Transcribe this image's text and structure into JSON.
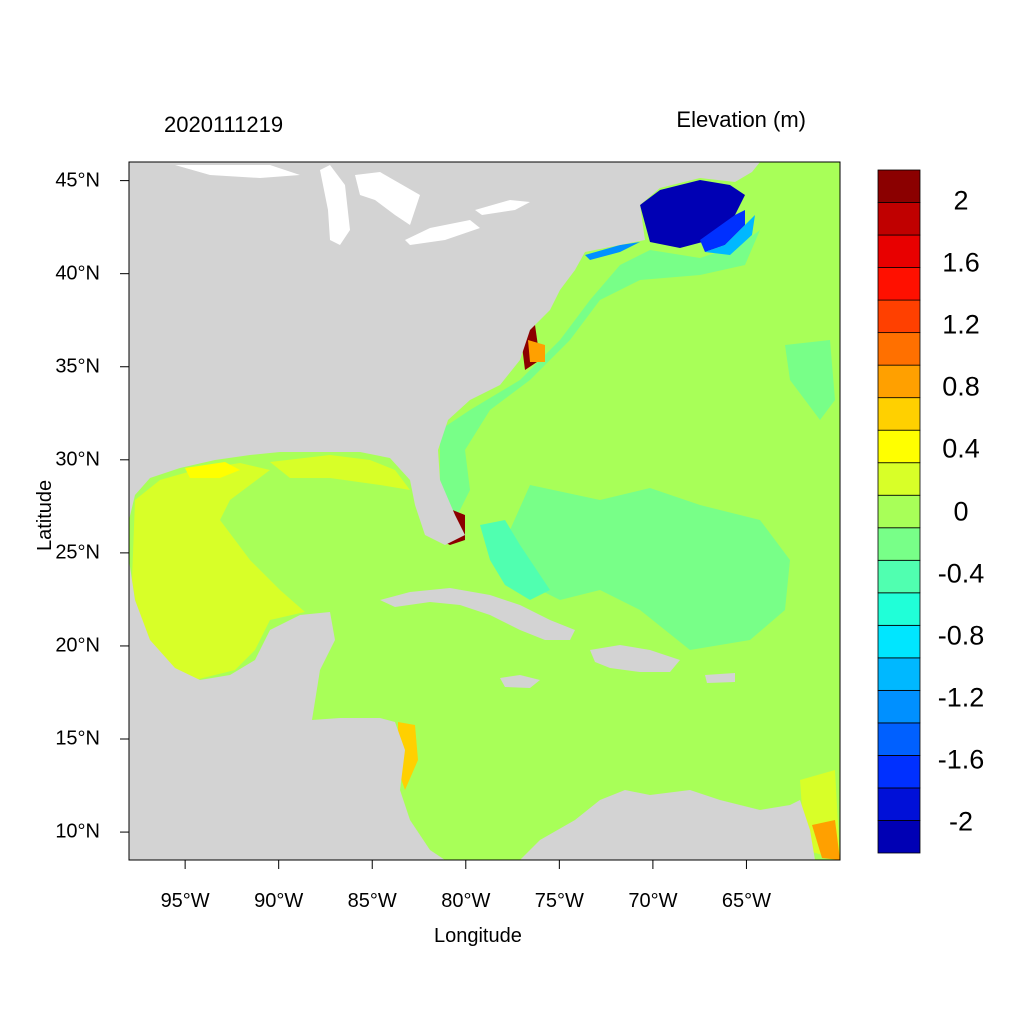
{
  "header": {
    "timestamp": "2020111219",
    "variable": "Elevation (m)"
  },
  "axes": {
    "xlabel": "Longitude",
    "ylabel": "Latitude",
    "xticks": [
      {
        "label": "95°W",
        "lon": -95
      },
      {
        "label": "90°W",
        "lon": -90
      },
      {
        "label": "85°W",
        "lon": -85
      },
      {
        "label": "80°W",
        "lon": -80
      },
      {
        "label": "75°W",
        "lon": -75
      },
      {
        "label": "70°W",
        "lon": -70
      },
      {
        "label": "65°W",
        "lon": -65
      }
    ],
    "yticks": [
      {
        "label": "45°N",
        "lat": 45
      },
      {
        "label": "40°N",
        "lat": 40
      },
      {
        "label": "35°N",
        "lat": 35
      },
      {
        "label": "30°N",
        "lat": 30
      },
      {
        "label": "25°N",
        "lat": 25
      },
      {
        "label": "20°N",
        "lat": 20
      },
      {
        "label": "15°N",
        "lat": 15
      },
      {
        "label": "10°N",
        "lat": 10
      }
    ],
    "lon_range": [
      -98,
      -60
    ],
    "lat_range": [
      8.5,
      46
    ]
  },
  "colorbar": {
    "levels": [
      -2.2,
      -2.0,
      -1.8,
      -1.6,
      -1.4,
      -1.2,
      -1.0,
      -0.8,
      -0.6,
      -0.4,
      -0.2,
      0.0,
      0.2,
      0.4,
      0.6,
      0.8,
      1.0,
      1.2,
      1.4,
      1.6,
      1.8,
      2.0,
      2.2
    ],
    "colors": [
      "#0000b4",
      "#0010d8",
      "#0030ff",
      "#0060ff",
      "#0090ff",
      "#00b8ff",
      "#00e6ff",
      "#20ffd8",
      "#50ffb0",
      "#78ff88",
      "#a8ff58",
      "#d8ff28",
      "#ffff00",
      "#ffd000",
      "#ffa000",
      "#ff7000",
      "#ff4000",
      "#ff1000",
      "#e80000",
      "#c00000",
      "#8b0000"
    ],
    "labels": [
      {
        "text": "2",
        "value": 2.0
      },
      {
        "text": "1.6",
        "value": 1.6
      },
      {
        "text": "1.2",
        "value": 1.2
      },
      {
        "text": "0.8",
        "value": 0.8
      },
      {
        "text": "0.4",
        "value": 0.4
      },
      {
        "text": "0",
        "value": 0.0
      },
      {
        "text": "-0.4",
        "value": -0.4
      },
      {
        "text": "-0.8",
        "value": -0.8
      },
      {
        "text": "-1.2",
        "value": -1.2
      },
      {
        "text": "-1.6",
        "value": -1.6
      },
      {
        "text": "-2",
        "value": -2.0
      }
    ]
  },
  "map": {
    "land_color": "#d3d3d3",
    "ocean_color": "#a8ff58",
    "lake_color": "#ffffff"
  }
}
